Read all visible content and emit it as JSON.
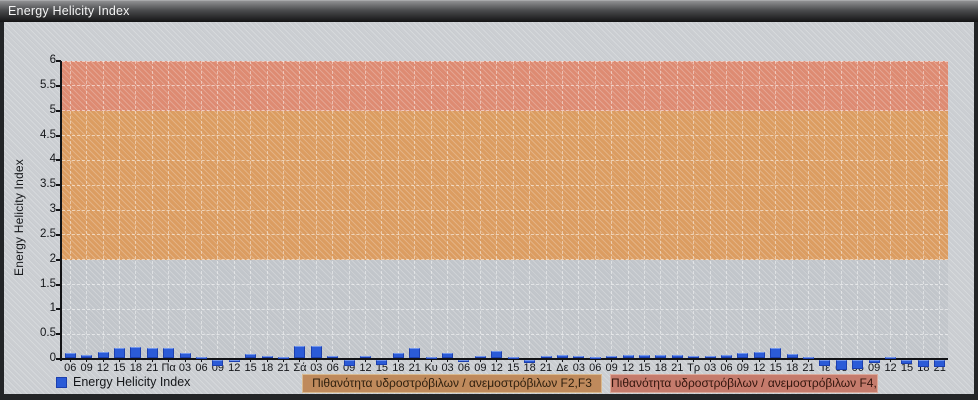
{
  "window": {
    "title": "Energy Helicity Index"
  },
  "chart_data": {
    "type": "bar",
    "title": "Energy Helicity Index",
    "xlabel": "",
    "ylabel": "Energy Helicity Index",
    "ylim": [
      0,
      6
    ],
    "yticks": [
      6,
      5.5,
      5,
      4.5,
      4,
      3.5,
      3,
      2.5,
      2,
      1.5,
      1,
      0.5,
      0
    ],
    "grid": true,
    "legend_position": "bottom-left",
    "categories": [
      "06",
      "09",
      "12",
      "15",
      "18",
      "21",
      "Πα",
      "03",
      "06",
      "09",
      "12",
      "15",
      "18",
      "21",
      "Σά",
      "03",
      "06",
      "09",
      "12",
      "15",
      "18",
      "21",
      "Κυ",
      "03",
      "06",
      "09",
      "12",
      "15",
      "18",
      "21",
      "Δε",
      "03",
      "06",
      "09",
      "12",
      "15",
      "18",
      "21",
      "Τρ",
      "03",
      "06",
      "09",
      "12",
      "15",
      "18",
      "21",
      "Τε",
      "03",
      "06",
      "09",
      "12",
      "15",
      "18",
      "21"
    ],
    "day_labels": [
      "Πα",
      "Σά",
      "Κυ",
      "Δε",
      "Τρ",
      "Τε"
    ],
    "series": [
      {
        "name": "Energy Helicity Index",
        "color": "#2b5bd7",
        "values": [
          0.11,
          0.07,
          0.13,
          0.21,
          0.23,
          0.21,
          0.2,
          0.1,
          0.03,
          -0.12,
          -0.05,
          0.09,
          0.05,
          0.03,
          0.25,
          0.25,
          0.04,
          -0.12,
          0.05,
          -0.1,
          0.1,
          0.2,
          0.03,
          0.1,
          -0.05,
          0.04,
          0.15,
          0.02,
          -0.06,
          0.04,
          0.06,
          0.05,
          0.02,
          0.05,
          0.06,
          0.07,
          0.07,
          0.06,
          0.05,
          0.04,
          0.06,
          0.1,
          0.13,
          0.2,
          0.08,
          0.03,
          -0.12,
          -0.2,
          -0.18,
          -0.06,
          0.03,
          -0.08,
          -0.15,
          -0.15
        ]
      }
    ],
    "bands": [
      {
        "from": 0,
        "to": 2,
        "color": "#c2c6cb",
        "label": null
      },
      {
        "from": 2,
        "to": 5,
        "color": "#dc9d61",
        "label": "Πιθανότητα υδροστρόβιλων / ανεμοστρόβιλων F2,F3",
        "chip_bg": "#bf8a5c",
        "chip_border": "#d9b98e",
        "chip_text": "#30200f"
      },
      {
        "from": 5,
        "to": 6,
        "color": "#de8b72",
        "label": "Πιθανότητα υδροστρόβιλων / ανεμοστρόβιλων F4,F5",
        "chip_bg": "#c57b6c",
        "chip_border": "#dcaa9b",
        "chip_text": "#33150d"
      }
    ],
    "legend": [
      {
        "label": "Energy Helicity Index",
        "color": "#2b5bd7"
      }
    ]
  }
}
